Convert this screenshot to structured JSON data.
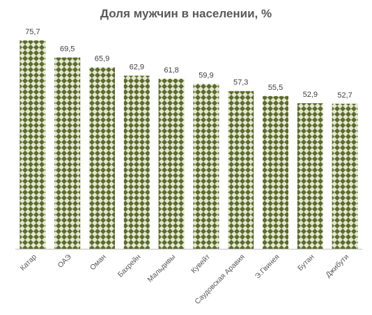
{
  "chart_data": {
    "type": "bar",
    "title": "Доля мужчин в населении, %",
    "xlabel": "",
    "ylabel": "",
    "categories": [
      "Катар",
      "ОАЭ",
      "Оман",
      "Бахрейн",
      "Мальдивы",
      "Кувейт",
      "Саудовская Аравия",
      "Э.Гвинея",
      "Бутан",
      "Джибути"
    ],
    "value_labels": [
      "75,7",
      "69,5",
      "65,9",
      "62,9",
      "61,8",
      "59,9",
      "57,3",
      "55,5",
      "52,9",
      "52,7"
    ],
    "values": [
      75.7,
      69.5,
      65.9,
      62.9,
      61.8,
      59.9,
      57.3,
      55.5,
      52.9,
      52.7
    ],
    "ylim": [
      0,
      75.7
    ],
    "grid": false,
    "legend": "none",
    "colors": {
      "bar_dark": "#5c6b2e",
      "bar_light": "#e3e8cf",
      "axis": "#bfbfbf",
      "title": "#595959",
      "text": "#404040"
    }
  }
}
